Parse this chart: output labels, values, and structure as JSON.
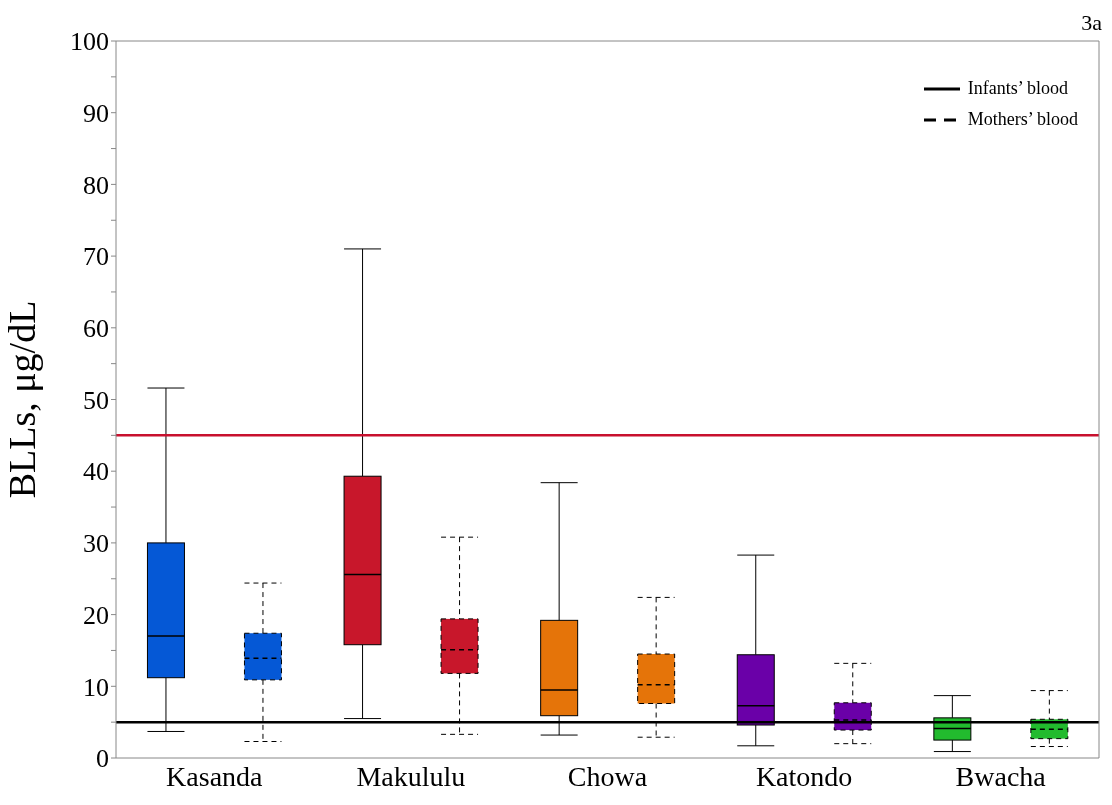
{
  "chart_data": {
    "type": "box",
    "ylabel": "BLLs, μg/dL",
    "annotations": [
      "3a"
    ],
    "categories": [
      "Kasanda",
      "Makululu",
      "Chowa",
      "Katondo",
      "Bwacha"
    ],
    "ylim": [
      0,
      100
    ],
    "yticks": [
      0,
      {
        "value": 5,
        "label": null
      },
      10,
      {
        "value": 15,
        "label": null
      },
      20,
      {
        "value": 25,
        "label": null
      },
      30,
      {
        "value": 35,
        "label": null
      },
      40,
      {
        "value": 45,
        "label": null
      },
      50,
      {
        "value": 55,
        "label": null
      },
      60,
      {
        "value": 65,
        "label": null
      },
      70,
      {
        "value": 75,
        "label": null
      },
      80,
      {
        "value": 85,
        "label": null
      },
      90,
      {
        "value": 95,
        "label": null
      },
      100
    ],
    "legend": "top right",
    "series": [
      {
        "name": "Infants’ blood",
        "color": "#000000",
        "line_style": "solid",
        "colors": [
          "#0558d6",
          "#c8172b",
          "#e57409",
          "#6a00a8",
          "#22bb2e"
        ],
        "boxes": [
          {
            "low": 3.7,
            "q1": 11.2,
            "median": 17.0,
            "q3": 30.0,
            "high": 51.6
          },
          {
            "low": 5.5,
            "q1": 15.8,
            "median": 25.6,
            "q3": 39.3,
            "high": 71.0
          },
          {
            "low": 3.2,
            "q1": 5.9,
            "median": 9.5,
            "q3": 19.2,
            "high": 38.4
          },
          {
            "low": 1.7,
            "q1": 4.6,
            "median": 7.3,
            "q3": 14.4,
            "high": 28.3
          },
          {
            "low": 0.9,
            "q1": 2.5,
            "median": 4.1,
            "q3": 5.6,
            "high": 8.7
          }
        ]
      },
      {
        "name": "Mothers’ blood",
        "color": "#000000",
        "line_style": "dashed",
        "colors": [
          "#0558d6",
          "#c8172b",
          "#e57409",
          "#6a00a8",
          "#22bb2e"
        ],
        "boxes": [
          {
            "low": 2.3,
            "q1": 10.9,
            "median": 13.9,
            "q3": 17.4,
            "high": 24.4
          },
          {
            "low": 3.3,
            "q1": 11.8,
            "median": 15.1,
            "q3": 19.4,
            "high": 30.8
          },
          {
            "low": 2.9,
            "q1": 7.6,
            "median": 10.2,
            "q3": 14.5,
            "high": 22.4
          },
          {
            "low": 2.0,
            "q1": 3.9,
            "median": 5.3,
            "q3": 7.7,
            "high": 13.2
          },
          {
            "low": 1.6,
            "q1": 2.7,
            "median": 4.0,
            "q3": 5.4,
            "high": 9.4
          }
        ]
      }
    ],
    "ref_lines": [
      {
        "axis": "y",
        "value": 45,
        "color": "#c8102e"
      },
      {
        "axis": "y",
        "value": 5,
        "color": "#000000"
      }
    ]
  }
}
